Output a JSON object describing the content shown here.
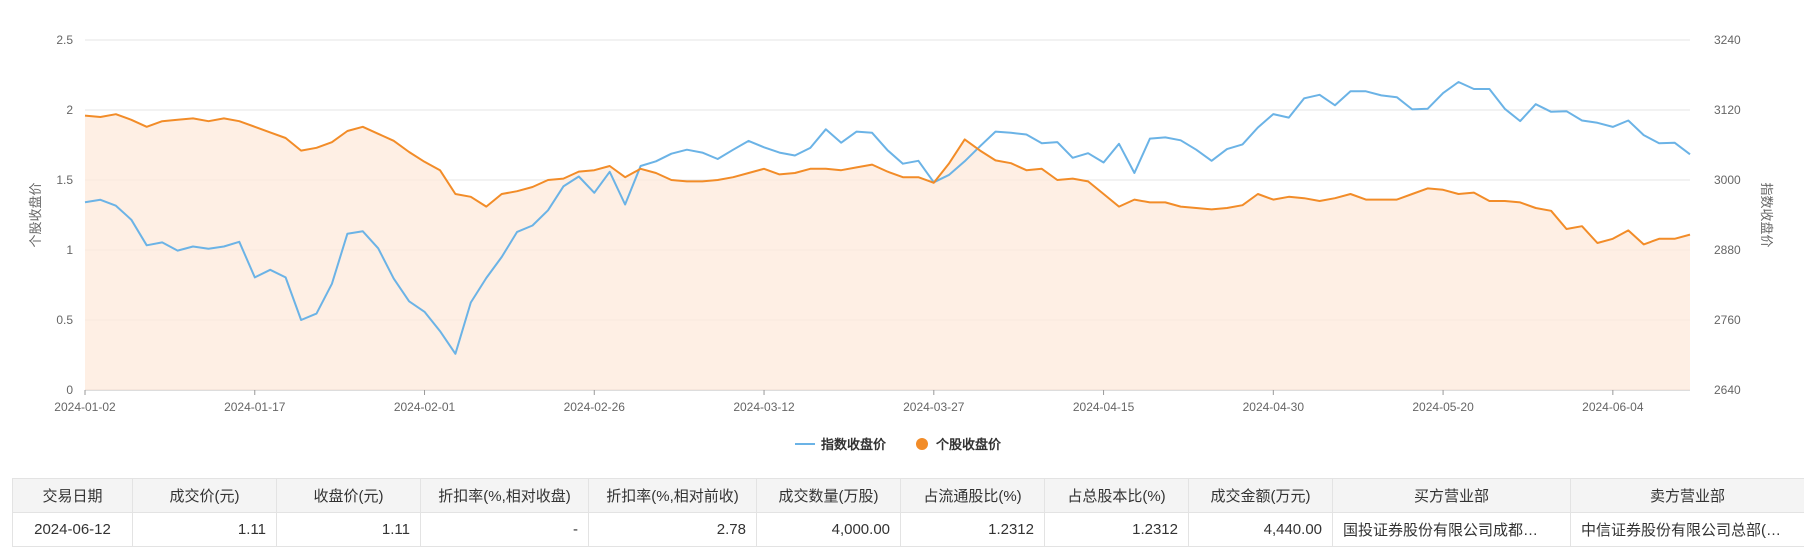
{
  "chart_data": {
    "type": "line",
    "y_left": {
      "label": "个股收盘价",
      "ticks": [
        "0",
        "0.5",
        "1",
        "1.5",
        "2",
        "2.5"
      ],
      "range": [
        0,
        2.5
      ]
    },
    "y_right": {
      "label": "指数收盘价",
      "ticks": [
        "2640",
        "2760",
        "2880",
        "3000",
        "3120",
        "3240"
      ],
      "range": [
        2640,
        3240
      ]
    },
    "x_ticks": [
      {
        "label": "2024-01-02",
        "index": 0
      },
      {
        "label": "2024-01-17",
        "index": 11
      },
      {
        "label": "2024-02-01",
        "index": 22
      },
      {
        "label": "2024-02-26",
        "index": 33
      },
      {
        "label": "2024-03-12",
        "index": 44
      },
      {
        "label": "2024-03-27",
        "index": 55
      },
      {
        "label": "2024-04-15",
        "index": 66
      },
      {
        "label": "2024-04-30",
        "index": 77
      },
      {
        "label": "2024-05-20",
        "index": 88
      },
      {
        "label": "2024-06-04",
        "index": 99
      }
    ],
    "point_count": 105,
    "grid": true,
    "legend": "bottom-center",
    "series": [
      {
        "name": "指数收盘价",
        "axis": "right",
        "color": "#6bb3e6",
        "values": [
          2962,
          2966,
          2956,
          2932,
          2888,
          2893,
          2879,
          2886,
          2882,
          2886,
          2894,
          2833,
          2846,
          2833,
          2760,
          2771,
          2822,
          2908,
          2912,
          2883,
          2831,
          2792,
          2774,
          2741,
          2702,
          2790,
          2832,
          2868,
          2911,
          2922,
          2948,
          2989,
          3006,
          2978,
          3014,
          2958,
          3024,
          3032,
          3045,
          3052,
          3047,
          3036,
          3052,
          3067,
          3056,
          3047,
          3042,
          3055,
          3087,
          3064,
          3083,
          3081,
          3051,
          3028,
          3033,
          2996,
          3009,
          3032,
          3058,
          3083,
          3081,
          3078,
          3063,
          3065,
          3038,
          3046,
          3030,
          3062,
          3012,
          3071,
          3073,
          3068,
          3052,
          3033,
          3053,
          3061,
          3090,
          3113,
          3107,
          3140,
          3146,
          3128,
          3152,
          3152,
          3145,
          3142,
          3121,
          3122,
          3149,
          3168,
          3156,
          3156,
          3122,
          3101,
          3130,
          3117,
          3118,
          3102,
          3098,
          3091,
          3102,
          3077,
          3063,
          3064,
          3044
        ]
      },
      {
        "name": "个股收盘价",
        "axis": "left",
        "color": "#f28c28",
        "values": [
          1.96,
          1.95,
          1.97,
          1.93,
          1.88,
          1.92,
          1.93,
          1.94,
          1.92,
          1.94,
          1.92,
          1.88,
          1.84,
          1.8,
          1.71,
          1.73,
          1.77,
          1.85,
          1.88,
          1.83,
          1.78,
          1.7,
          1.63,
          1.57,
          1.4,
          1.38,
          1.31,
          1.4,
          1.42,
          1.45,
          1.5,
          1.51,
          1.56,
          1.57,
          1.6,
          1.52,
          1.58,
          1.55,
          1.5,
          1.49,
          1.49,
          1.5,
          1.52,
          1.55,
          1.58,
          1.54,
          1.55,
          1.58,
          1.58,
          1.57,
          1.59,
          1.61,
          1.56,
          1.52,
          1.52,
          1.48,
          1.62,
          1.79,
          1.71,
          1.64,
          1.62,
          1.57,
          1.58,
          1.5,
          1.51,
          1.49,
          1.4,
          1.31,
          1.36,
          1.34,
          1.34,
          1.31,
          1.3,
          1.29,
          1.3,
          1.32,
          1.4,
          1.36,
          1.38,
          1.37,
          1.35,
          1.37,
          1.4,
          1.36,
          1.36,
          1.36,
          1.4,
          1.44,
          1.43,
          1.4,
          1.41,
          1.35,
          1.35,
          1.34,
          1.3,
          1.28,
          1.15,
          1.17,
          1.05,
          1.08,
          1.14,
          1.04,
          1.08,
          1.08,
          1.11
        ]
      }
    ]
  },
  "table": {
    "headers": [
      "交易日期",
      "成交价(元)",
      "收盘价(元)",
      "折扣率(%,相对收盘)",
      "折扣率(%,相对前收)",
      "成交数量(万股)",
      "占流通股比(%)",
      "占总股本比(%)",
      "成交金额(万元)",
      "买方营业部",
      "卖方营业部"
    ],
    "rows": [
      [
        "2024-06-12",
        "1.11",
        "1.11",
        "-",
        "2.78",
        "4,000.00",
        "1.2312",
        "1.2312",
        "4,440.00",
        "国投证券股份有限公司成都…",
        "中信证券股份有限公司总部(…"
      ]
    ]
  }
}
